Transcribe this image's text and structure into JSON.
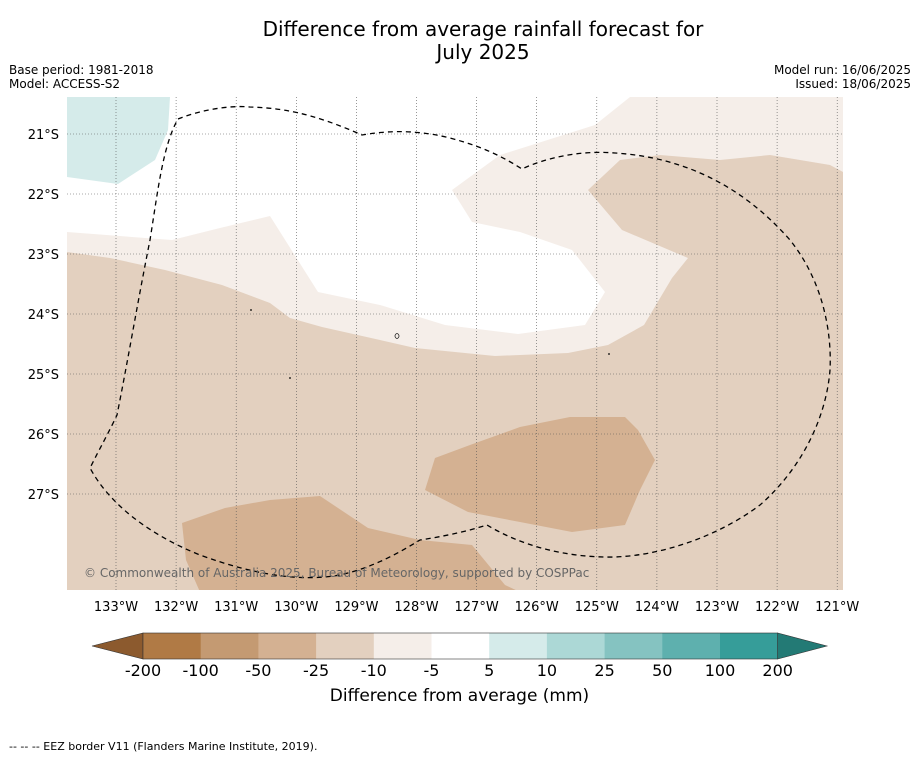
{
  "title_line1": "Difference from average rainfall forecast for",
  "title_line2": "July 2025",
  "base_period": "Base period: 1981-2018",
  "model": "Model: ACCESS-S2",
  "model_run": "Model run: 16/06/2025",
  "issued": "Issued: 18/06/2025",
  "copyright": "© Commonwealth of Australia 2025, Bureau of Meteorology, supported by COSPPac",
  "footer_note": "--  --  -- EEZ border V11 (Flanders Marine Institute, 2019).",
  "colorbar_label": "Difference from average (mm)",
  "lon_labels": [
    "133°W",
    "132°W",
    "131°W",
    "130°W",
    "129°W",
    "128°W",
    "127°W",
    "126°W",
    "125°W",
    "124°W",
    "123°W",
    "122°W",
    "121°W"
  ],
  "lat_labels": [
    "21°S",
    "22°S",
    "23°S",
    "24°S",
    "25°S",
    "26°S",
    "27°S"
  ],
  "colorbar": {
    "ticks": [
      "-200",
      "-100",
      "-50",
      "-25",
      "-10",
      "-5",
      "5",
      "10",
      "25",
      "50",
      "100",
      "200"
    ],
    "colors": [
      "#8c5a2e",
      "#b07a45",
      "#c49a72",
      "#d4b192",
      "#e3d0bf",
      "#f5eee9",
      "#ffffff",
      "#d5ebea",
      "#acd8d6",
      "#85c3c1",
      "#5eb0ae",
      "#369d99",
      "#237a75"
    ]
  },
  "map_colors": {
    "dry_light": "#f5eee9",
    "dry_mid": "#e3d0bf",
    "dry_strong": "#d4b192",
    "wet_light": "#d5ebea",
    "normal": "#ffffff"
  }
}
